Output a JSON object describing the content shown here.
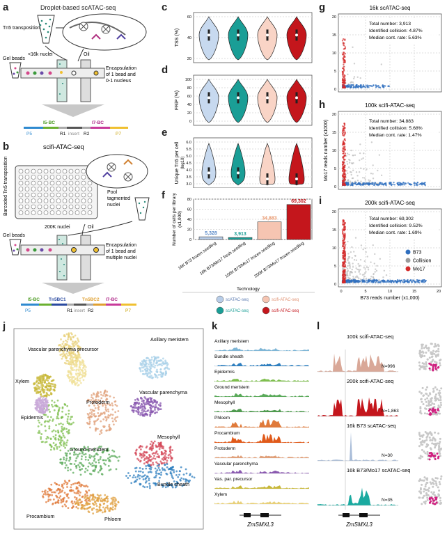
{
  "panel_letters": {
    "a": "a",
    "b": "b",
    "c": "c",
    "d": "d",
    "e": "e",
    "f": "f",
    "g": "g",
    "h": "h",
    "i": "i",
    "j": "j",
    "k": "k",
    "l": "l"
  },
  "schematic_a": {
    "title": "Droplet-based scATAC-seq",
    "tn5": "Tn5 transposition",
    "nuclei": "<16k nuclei",
    "oil": "Oil",
    "gel_beads": "Gel beads",
    "encaps": [
      "Encapsulation",
      "of 1 bead and",
      "0-1 nucleus"
    ],
    "bc_labels": [
      "I5-BC",
      "I7-BC"
    ],
    "p_labels": [
      "P5",
      "R1",
      "insert",
      "R2",
      "P7"
    ]
  },
  "schematic_b": {
    "title": "scifi-ATAC-seq",
    "barcoded": "Barcoded Tn5 transposition",
    "pool": [
      "Pool",
      "tagmented",
      "nuclei"
    ],
    "nuclei": "200K nuclei",
    "oil": "Oil",
    "gel_beads": "Gel beads",
    "encaps": [
      "Encapsulation",
      "of 1 bead and",
      "multiple nuclei"
    ],
    "plate_rows": [
      "A",
      "B",
      "C",
      "D",
      "E",
      "F",
      "G",
      "H"
    ],
    "bc_labels": [
      "I5-BC",
      "Tn5BC1",
      "Tn5BC2",
      "I7-BC"
    ],
    "p_labels": [
      "P5",
      "R1",
      "insert",
      "R2",
      "P7"
    ]
  },
  "violin_panels": [
    {
      "id": "c",
      "ylabel": "TSS (%)",
      "ticks": [
        "60",
        "40",
        "20"
      ]
    },
    {
      "id": "d",
      "ylabel": "FRiP (%)",
      "ticks": [
        "100",
        "80",
        "60",
        "40",
        "20",
        "0"
      ]
    },
    {
      "id": "e",
      "ylabel": "Unique Tn5 per cell",
      "ylabel2": "(log10)",
      "ticks": [
        "6.0",
        "5.5",
        "5.0",
        "4.5",
        "4.0",
        "3.5",
        "3.0"
      ]
    }
  ],
  "chart_data": [
    {
      "type": "bar",
      "id": "f",
      "ylabel": "Number of cells per library",
      "ylabel_unit": "(x1,000)",
      "categories": [
        "16K B73 frozen seedling",
        "16K B73/Mo17 fresh seedling",
        "100K B73/Mo17 frozen seedling",
        "200K B73/Mo17 frozen seedling"
      ],
      "values": [
        5.328,
        3.913,
        34.883,
        69.302
      ],
      "value_labels": [
        "5,328",
        "3,913",
        "34,883",
        "69,302"
      ],
      "ticks": [
        "80",
        "60",
        "40",
        "20",
        "0"
      ],
      "ylim": [
        0,
        80
      ],
      "colors": [
        "#b8cde8",
        "#1a9e96",
        "#f6c5b2",
        "#c4161c"
      ]
    },
    {
      "type": "scatter",
      "id": "g",
      "title": "16k scATAC-seq",
      "stats": [
        "Total number: 3,913",
        "Identified collision: 4.87%",
        "Median cont. rate: 5.63%"
      ],
      "ticks": [
        "20",
        "15",
        "10",
        "5",
        "0"
      ]
    },
    {
      "type": "scatter",
      "id": "h",
      "title": "100k scifi-ATAC-seq",
      "stats": [
        "Total number: 34,883",
        "Identified collision: 5.68%",
        "Median cont. rate: 1.47%"
      ],
      "ylabel": "Mo17 reads number (x1000)",
      "ticks": [
        "20",
        "15",
        "10",
        "5",
        "0"
      ]
    },
    {
      "type": "scatter",
      "id": "i",
      "title": "200k scifi-ATAC-seq",
      "stats": [
        "Total number: 69,302",
        "Identified collision: 9.52%",
        "Median cont. rate: 1.69%"
      ],
      "ticks": [
        "20",
        "15",
        "10",
        "5",
        "0"
      ],
      "xticks": [
        "0",
        "5",
        "10",
        "15",
        "20"
      ],
      "xlabel": "B73 reads number (x1,000)",
      "legend": [
        {
          "name": "B73",
          "color": "#2f6fbf"
        },
        {
          "name": "Collision",
          "color": "#9a9a9a"
        },
        {
          "name": "Mo17",
          "color": "#d42a2a"
        }
      ]
    }
  ],
  "technology_legend": {
    "title": "Technology",
    "items": [
      {
        "name": "scATAC-seq",
        "color": "#b8cde8"
      },
      {
        "name": "scifi-ATAC-seq",
        "color": "#f6c5b2"
      },
      {
        "name": "scATAC-seq",
        "color": "#1a9e96"
      },
      {
        "name": "scifi-ATAC-seq",
        "color": "#c4161c"
      }
    ]
  },
  "umap_labels": [
    "Vascular parenchyma precursor",
    "Axillary meristem",
    "Xylem",
    "Vascular parenchyma",
    "Protoderm",
    "Epidermis",
    "Mesophyll",
    "Ground meristem",
    "Bundle sheath",
    "Procambium",
    "Phloem"
  ],
  "tracks_k": {
    "cell_types": [
      "Axillary meristem",
      "Bundle sheath",
      "Epidermis",
      "Ground meristem",
      "Mesophyll",
      "Phloem",
      "Procambium",
      "Protoderm",
      "Vascular parenchyma",
      "Vas. par. precursor",
      "Xylem"
    ],
    "colors": [
      "#7fb6d6",
      "#2f7fbf",
      "#7fbf4f",
      "#5aaa5a",
      "#4f9a4f",
      "#e07a3a",
      "#e05a1a",
      "#e0a07a",
      "#8a5ab0",
      "#c8b83a",
      "#e8d07a"
    ],
    "gene": "ZmSMXL3"
  },
  "tracks_l": {
    "tracks": [
      {
        "title": "100k scifi-ATAC-seq",
        "n": "N=996",
        "color": "#d9a898"
      },
      {
        "title": "200k scifi-ATAC-seq",
        "n": "N=1,863",
        "color": "#c4161c"
      },
      {
        "title": "16k B73 scATAC-seq",
        "n": "N=30",
        "color": "#a8bcd8"
      },
      {
        "title": "16k B73/Mo17 scATAC-seq",
        "n": "N=35",
        "color": "#1aaaa0"
      }
    ],
    "gene": "ZmSMXL3"
  }
}
